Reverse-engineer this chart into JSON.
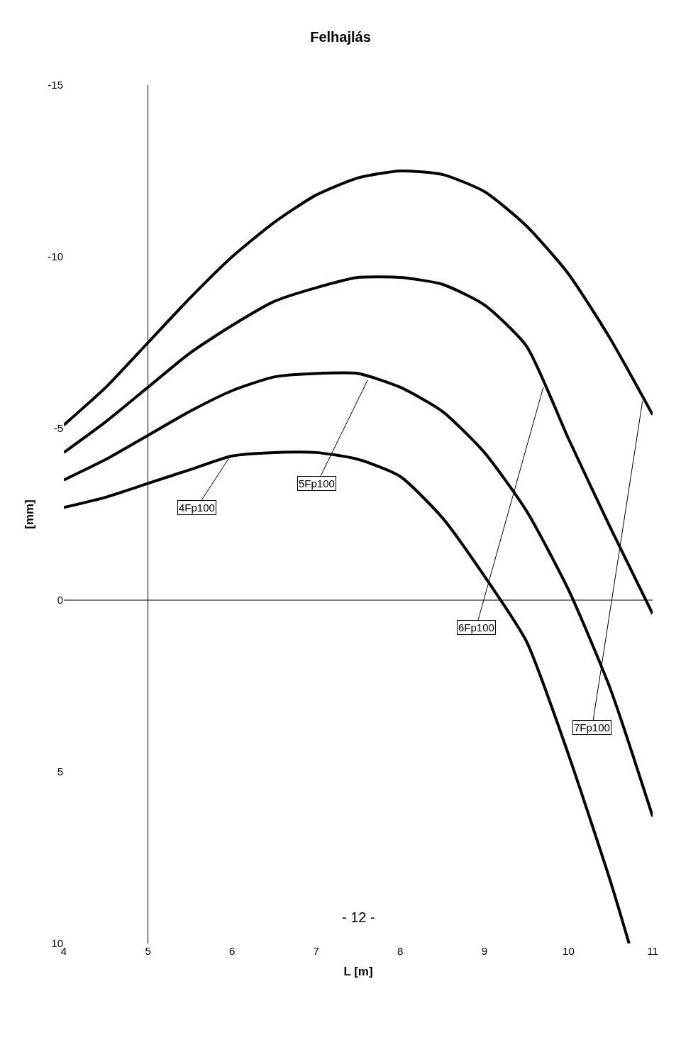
{
  "chart_data": {
    "type": "line",
    "subtitle": "Felhajlás",
    "xlabel": "L [m]",
    "ylabel": "[mm]",
    "xlim": [
      4,
      11
    ],
    "xticks": [
      4,
      5,
      6,
      7,
      8,
      9,
      10,
      11
    ],
    "ylim": [
      10,
      -15
    ],
    "yticks": [
      -15,
      -10,
      -5,
      0,
      5,
      10
    ],
    "grid": false,
    "legend": false,
    "marker": "none",
    "line_style": "solid",
    "series": [
      {
        "color": "#000000",
        "x": [
          4,
          4.5,
          5,
          5.5,
          6,
          6.5,
          7,
          7.5,
          8,
          8.5,
          9,
          9.5,
          10,
          10.5,
          11
        ],
        "values": [
          -5.1,
          -6.2,
          -7.5,
          -8.8,
          -10.0,
          -11.0,
          -11.8,
          -12.3,
          -12.5,
          -12.4,
          -11.9,
          -10.9,
          -9.5,
          -7.6,
          -5.4
        ]
      },
      {
        "color": "#000000",
        "x": [
          4,
          4.5,
          5,
          5.5,
          6,
          6.5,
          7,
          7.5,
          8,
          8.5,
          9,
          9.5,
          10,
          10.5,
          11
        ],
        "values": [
          -4.3,
          -5.2,
          -6.2,
          -7.2,
          -8.0,
          -8.7,
          -9.1,
          -9.4,
          -9.4,
          -9.2,
          -8.6,
          -7.4,
          -4.7,
          -2.1,
          0.4
        ]
      },
      {
        "color": "#000000",
        "x": [
          4,
          4.5,
          5,
          5.5,
          6,
          6.5,
          7,
          7.5,
          8,
          8.5,
          9,
          9.5,
          10,
          10.5,
          11
        ],
        "values": [
          -3.5,
          -4.1,
          -4.8,
          -5.5,
          -6.1,
          -6.5,
          -6.6,
          -6.6,
          -6.2,
          -5.5,
          -4.3,
          -2.6,
          -0.3,
          2.6,
          6.3
        ]
      },
      {
        "color": "#000000",
        "x": [
          4,
          4.5,
          5,
          5.5,
          6,
          6.5,
          7,
          7.5,
          8,
          8.5,
          9,
          9.5,
          10,
          10.5,
          10.72
        ],
        "values": [
          -2.7,
          -3.0,
          -3.4,
          -3.8,
          -4.2,
          -4.3,
          -4.3,
          -4.1,
          -3.6,
          -2.4,
          -0.7,
          1.2,
          4.5,
          8.2,
          10.0
        ]
      }
    ],
    "ref_lines": [
      {
        "axis": "x",
        "value": 5
      },
      {
        "axis": "y",
        "value": 0
      }
    ],
    "annotations": [
      {
        "text": "7Fp100",
        "x": 10.88,
        "y": -5.8
      },
      {
        "text": "6Fp100",
        "x": 9.7,
        "y": -6.2
      },
      {
        "text": "5Fp100",
        "x": 7.61,
        "y": -6.4
      },
      {
        "text": "4Fp100",
        "x": 5.98,
        "y": -4.2
      },
      "- 12 -"
    ]
  }
}
